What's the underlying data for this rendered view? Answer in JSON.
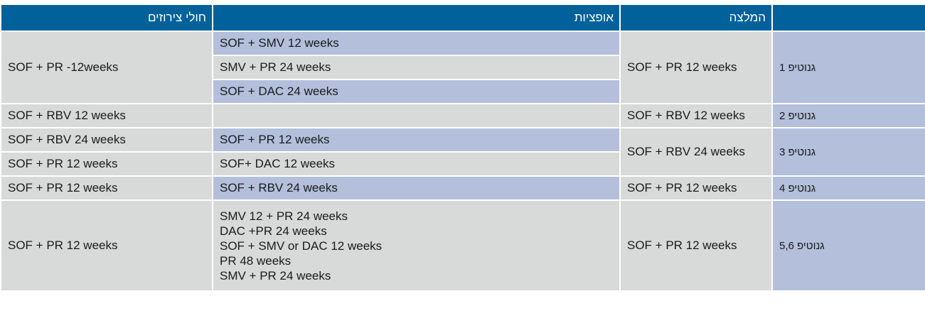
{
  "headers": {
    "cirrhosis": "חולי צירוזים",
    "options": "אופציות",
    "recommendation": "המלצה",
    "genotype": ""
  },
  "rows": {
    "g1": {
      "genotype": "גנוטיפ 1",
      "recommendation": "SOF + PR 12 weeks",
      "cirrhosis": "SOF + PR -12weeks",
      "options": [
        "SOF + SMV 12 weeks",
        "SMV + PR 24 weeks",
        "SOF + DAC 24 weeks"
      ]
    },
    "g2": {
      "genotype": "גנוטיפ 2",
      "recommendation": "SOF + RBV 12 weeks",
      "cirrhosis": "SOF + RBV 12 weeks",
      "options": [
        ""
      ]
    },
    "g3": {
      "genotype": "גנוטיפ 3",
      "recommendation": "SOF + RBV 24 weeks",
      "cirrhosis": [
        "SOF + RBV 24 weeks",
        "SOF + PR 12 weeks"
      ],
      "options": [
        "SOF + PR 12 weeks",
        "SOF+ DAC 12 weeks"
      ]
    },
    "g4": {
      "genotype": "גנוטיפ 4",
      "recommendation": "SOF + PR 12 weeks",
      "cirrhosis": "SOF + PR 12 weeks",
      "options": [
        "SOF + RBV 24 weeks"
      ]
    },
    "g56": {
      "genotype": "גנוטיפ 5,6",
      "recommendation": "SOF + PR 12 weeks",
      "cirrhosis": "SOF + PR 12 weeks",
      "options": [
        "SMV 12 + PR 24 weeks",
        "DAC +PR 24 weeks",
        "SOF + SMV or DAC 12 weeks",
        "PR 48 weeks",
        "SMV + PR 24 weeks"
      ]
    }
  },
  "colors": {
    "header": "#00619b",
    "gray_cell": "#d8d9d9",
    "blue_cell": "#b3bfdb"
  }
}
